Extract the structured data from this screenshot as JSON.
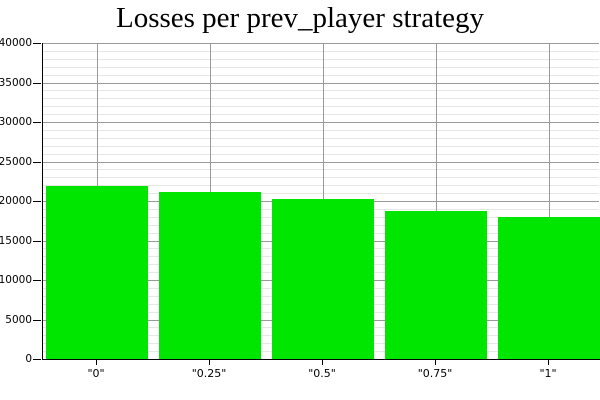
{
  "chart_data": {
    "type": "bar",
    "title": "Losses per prev_player strategy",
    "categories": [
      "\"0\"",
      "\"0.25\"",
      "\"0.5\"",
      "\"0.75\"",
      "\"1\""
    ],
    "values": [
      21900,
      21150,
      20250,
      18750,
      18000
    ],
    "xlabel": "",
    "ylabel": "",
    "ylim": [
      0,
      40000
    ],
    "y_major_step": 5000,
    "y_minor_step": 1000,
    "y_tick_labels": [
      "0",
      "5000",
      "10000",
      "15000",
      "20000",
      "25000",
      "30000",
      "35000",
      "40000"
    ],
    "legend": "none",
    "grid": "on",
    "colors": {
      "bar_fill": "#00e600",
      "grid_major": "#9a9a9a",
      "grid_minor": "#e6e6e6",
      "grid_vertical": "#9a9a9a",
      "axis": "#000000",
      "background": "#ffffff",
      "text": "#000000"
    }
  }
}
